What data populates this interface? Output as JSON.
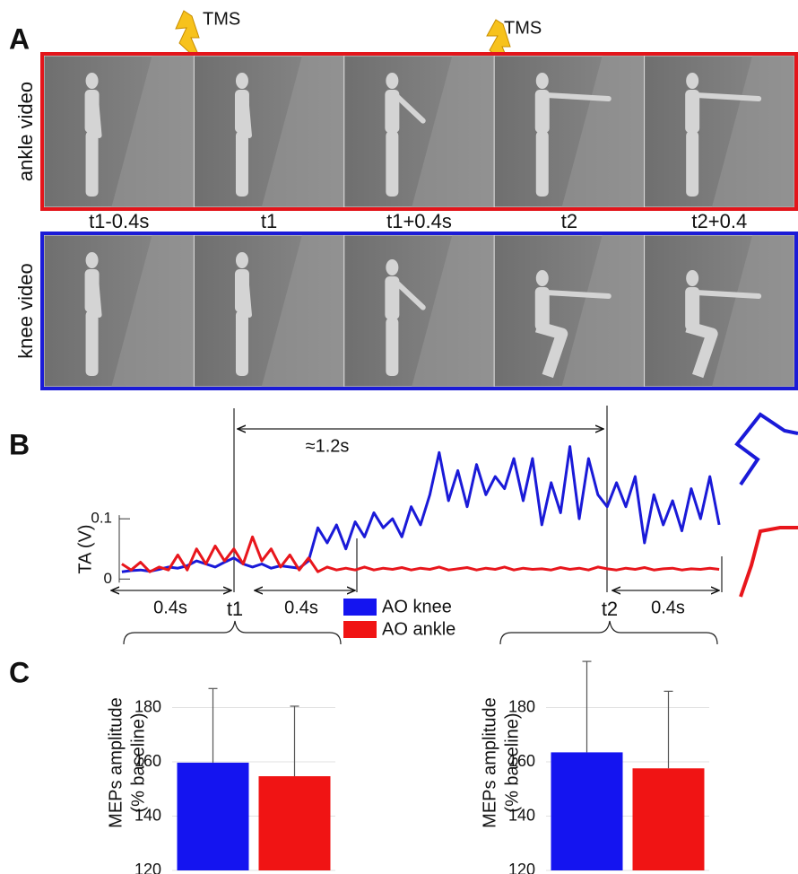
{
  "figure": {
    "panel_letters": [
      "A",
      "B",
      "C"
    ],
    "tms_labels": [
      "TMS",
      "TMS"
    ],
    "row_labels": [
      {
        "text": "ankle video",
        "color": "#e3151b"
      },
      {
        "text": "knee video",
        "color": "#1b1bd6"
      }
    ],
    "frame_times": [
      "t1-0.4s",
      "t1",
      "t1+0.4s",
      "t2",
      "t2+0.4"
    ]
  },
  "chart_data": [
    {
      "type": "line",
      "y_label": "TA (V)",
      "x": [
        -0.36,
        -0.33,
        -0.3,
        -0.27,
        -0.24,
        -0.21,
        -0.18,
        -0.15,
        -0.12,
        -0.09,
        -0.06,
        -0.03,
        0,
        0.03,
        0.06,
        0.09,
        0.12,
        0.15,
        0.18,
        0.21,
        0.24,
        0.27,
        0.3,
        0.33,
        0.36,
        0.39,
        0.42,
        0.45,
        0.48,
        0.51,
        0.54,
        0.57,
        0.6,
        0.63,
        0.66,
        0.69,
        0.72,
        0.75,
        0.78,
        0.81,
        0.84,
        0.87,
        0.9,
        0.93,
        0.96,
        0.99,
        1.02,
        1.05,
        1.08,
        1.11,
        1.14,
        1.17,
        1.2,
        1.23,
        1.26,
        1.29,
        1.32,
        1.35,
        1.38,
        1.41,
        1.44,
        1.47,
        1.5,
        1.53,
        1.56
      ],
      "xlim": [
        -0.4,
        1.6
      ],
      "ylim": [
        -0.01,
        0.27
      ],
      "yticks": [
        0,
        0.1
      ],
      "series": [
        {
          "color": "#1a1ad8",
          "values": [
            0.012,
            0.014,
            0.015,
            0.013,
            0.016,
            0.02,
            0.018,
            0.022,
            0.03,
            0.025,
            0.02,
            0.028,
            0.035,
            0.025,
            0.02,
            0.025,
            0.018,
            0.022,
            0.02,
            0.018,
            0.03,
            0.085,
            0.06,
            0.09,
            0.05,
            0.095,
            0.07,
            0.11,
            0.085,
            0.1,
            0.07,
            0.12,
            0.09,
            0.14,
            0.21,
            0.13,
            0.18,
            0.12,
            0.19,
            0.14,
            0.17,
            0.15,
            0.2,
            0.13,
            0.2,
            0.09,
            0.16,
            0.11,
            0.22,
            0.1,
            0.2,
            0.14,
            0.12,
            0.16,
            0.12,
            0.17,
            0.06,
            0.14,
            0.09,
            0.13,
            0.08,
            0.15,
            0.1,
            0.17,
            0.09
          ]
        },
        {
          "color": "#e8161c",
          "values": [
            0.025,
            0.015,
            0.028,
            0.012,
            0.02,
            0.015,
            0.04,
            0.015,
            0.05,
            0.025,
            0.055,
            0.03,
            0.05,
            0.025,
            0.07,
            0.03,
            0.05,
            0.02,
            0.04,
            0.015,
            0.035,
            0.012,
            0.02,
            0.015,
            0.018,
            0.015,
            0.02,
            0.015,
            0.018,
            0.016,
            0.019,
            0.015,
            0.018,
            0.016,
            0.02,
            0.015,
            0.017,
            0.019,
            0.015,
            0.018,
            0.016,
            0.02,
            0.015,
            0.018,
            0.016,
            0.017,
            0.015,
            0.019,
            0.016,
            0.018,
            0.015,
            0.02,
            0.017,
            0.015,
            0.018,
            0.016,
            0.019,
            0.015,
            0.017,
            0.018,
            0.015,
            0.017,
            0.016,
            0.018,
            0.016
          ]
        }
      ],
      "annotations": [
        "≈1.2s",
        "0.4s",
        "0.4s",
        "0.4s"
      ]
    },
    {
      "type": "bar",
      "categories": [
        "t1"
      ],
      "y_label": [
        "MEPs amplitude",
        "(% baseline)"
      ],
      "ylim": [
        120,
        200
      ],
      "yticks": [
        120,
        140,
        160,
        180
      ],
      "grid": true,
      "legend": true,
      "series": [
        {
          "name": "AO knee",
          "color": "#1414f0",
          "values": [
            159.7
          ],
          "errors": [
            27.3
          ]
        },
        {
          "name": "AO ankle",
          "color": "#f01414",
          "values": [
            154.7
          ],
          "errors": [
            25.8
          ]
        }
      ]
    },
    {
      "type": "bar",
      "categories": [
        "t2"
      ],
      "y_label": [
        "MEPs amplitude",
        "(% baseline)"
      ],
      "ylim": [
        120,
        200
      ],
      "yticks": [
        120,
        140,
        160,
        180
      ],
      "grid": true,
      "legend": false,
      "series": [
        {
          "color": "#1414f0",
          "values": [
            163.5
          ],
          "errors": [
            33.5
          ]
        },
        {
          "color": "#f01414",
          "values": [
            157.6
          ],
          "errors": [
            28.4
          ]
        }
      ]
    }
  ]
}
